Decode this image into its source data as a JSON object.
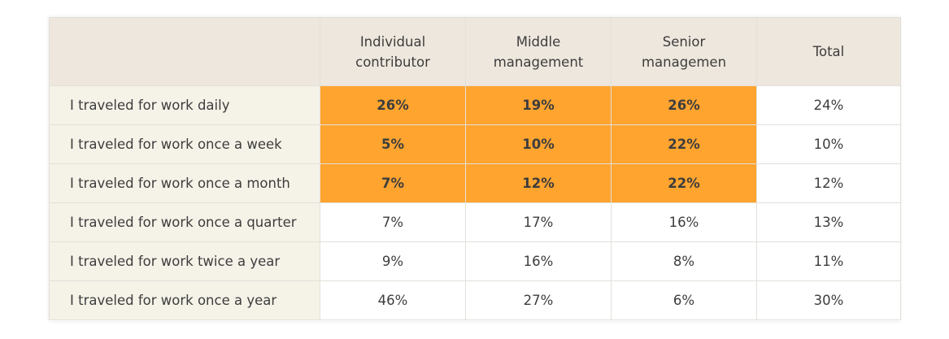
{
  "colors": {
    "header_bg": "#eee7dd",
    "label_bg": "#f5f2e8",
    "cell_bg": "#ffffff",
    "highlight_bg": "#ffa42f",
    "border": "#e3e0da",
    "text": "#3d3d3d"
  },
  "chart_data": {
    "type": "table",
    "columns": [
      {
        "line1": "Individual",
        "line2": "contributor"
      },
      {
        "line1": "Middle",
        "line2": "management"
      },
      {
        "line1": "Senior",
        "line2": "managemen"
      },
      {
        "line1": "Total",
        "line2": ""
      }
    ],
    "rows": [
      {
        "label": "I traveled for work daily",
        "values": [
          "26%",
          "19%",
          "26%",
          "24%"
        ],
        "highlight": [
          true,
          true,
          true,
          false
        ]
      },
      {
        "label": "I traveled for work once a week",
        "values": [
          "5%",
          "10%",
          "22%",
          "10%"
        ],
        "highlight": [
          true,
          true,
          true,
          false
        ]
      },
      {
        "label": "I traveled for work once a month",
        "values": [
          "7%",
          "12%",
          "22%",
          "12%"
        ],
        "highlight": [
          true,
          true,
          true,
          false
        ]
      },
      {
        "label": "I traveled for work once a quarter",
        "values": [
          "7%",
          "17%",
          "16%",
          "13%"
        ],
        "highlight": [
          false,
          false,
          false,
          false
        ]
      },
      {
        "label": "I traveled for work twice a year",
        "values": [
          "9%",
          "16%",
          "8%",
          "11%"
        ],
        "highlight": [
          false,
          false,
          false,
          false
        ]
      },
      {
        "label": "I traveled for work once a year",
        "values": [
          "46%",
          "27%",
          "6%",
          "30%"
        ],
        "highlight": [
          false,
          false,
          false,
          false
        ]
      }
    ]
  }
}
